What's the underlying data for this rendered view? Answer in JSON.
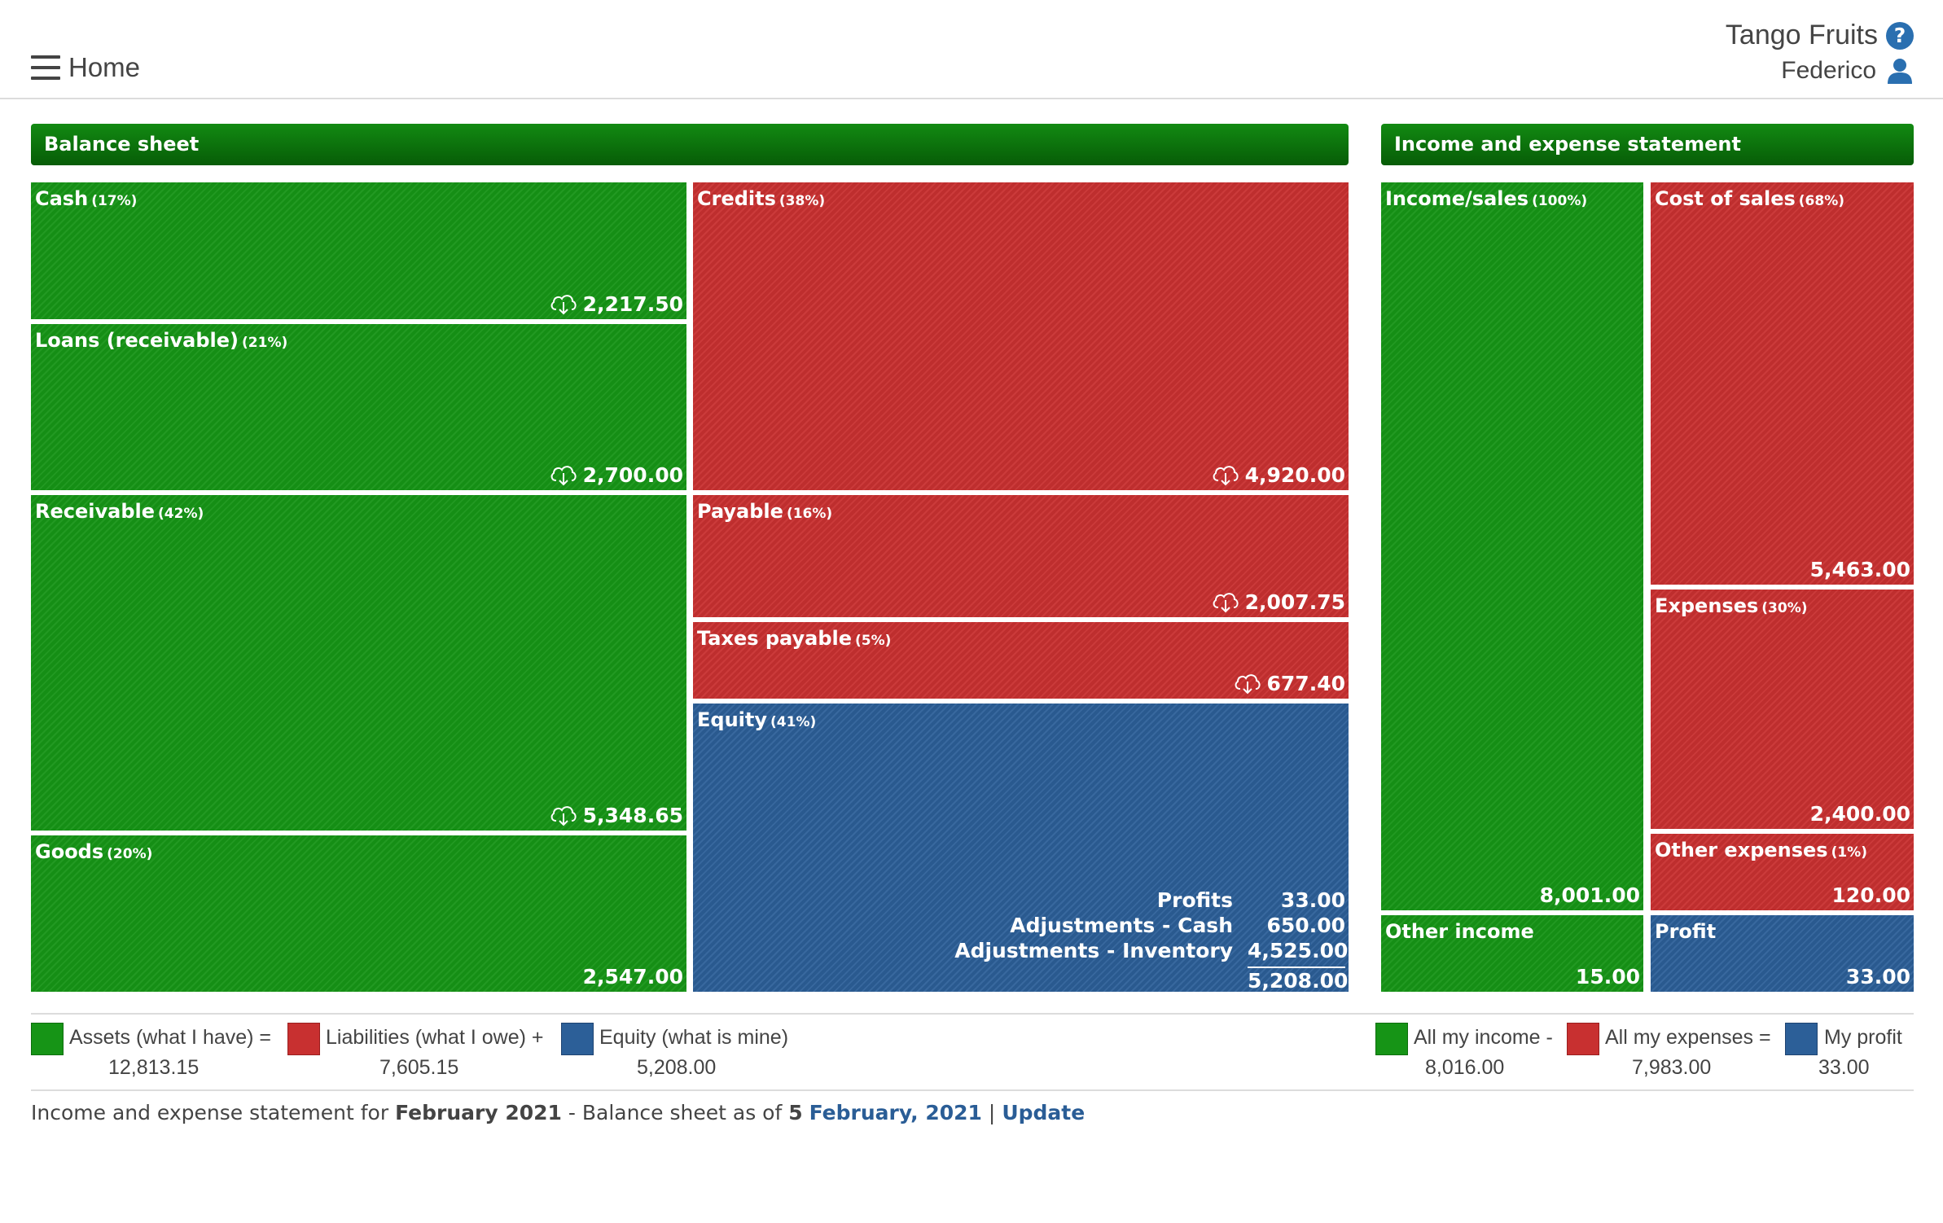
{
  "header": {
    "home_label": "Home",
    "company": "Tango Fruits",
    "user": "Federico"
  },
  "balance_sheet": {
    "title": "Balance sheet",
    "cash": {
      "name": "Cash",
      "pct": "(17%)",
      "value": "2,217.50"
    },
    "loans": {
      "name": "Loans (receivable)",
      "pct": "(21%)",
      "value": "2,700.00"
    },
    "receivable": {
      "name": "Receivable",
      "pct": "(42%)",
      "value": "5,348.65"
    },
    "goods": {
      "name": "Goods",
      "pct": "(20%)",
      "value": "2,547.00"
    },
    "credits": {
      "name": "Credits",
      "pct": "(38%)",
      "value": "4,920.00"
    },
    "payable": {
      "name": "Payable",
      "pct": "(16%)",
      "value": "2,007.75"
    },
    "taxes": {
      "name": "Taxes payable",
      "pct": "(5%)",
      "value": "677.40"
    },
    "equity": {
      "name": "Equity",
      "pct": "(41%)",
      "rows": [
        {
          "label": "Profits",
          "value": "33.00"
        },
        {
          "label": "Adjustments - Cash",
          "value": "650.00"
        },
        {
          "label": "Adjustments - Inventory",
          "value": "4,525.00"
        }
      ],
      "total": "5,208.00"
    }
  },
  "income_statement": {
    "title": "Income and expense statement",
    "income_sales": {
      "name": "Income/sales",
      "pct": "(100%)",
      "value": "8,001.00"
    },
    "other_income": {
      "name": "Other income",
      "value": "15.00"
    },
    "cost_of_sales": {
      "name": "Cost of sales",
      "pct": "(68%)",
      "value": "5,463.00"
    },
    "expenses": {
      "name": "Expenses",
      "pct": "(30%)",
      "value": "2,400.00"
    },
    "other_expenses": {
      "name": "Other expenses",
      "pct": "(1%)",
      "value": "120.00"
    },
    "profit": {
      "name": "Profit",
      "value": "33.00"
    }
  },
  "legend_balance": {
    "assets_label": "Assets (what I have) =",
    "assets_value": "12,813.15",
    "liabilities_label": "Liabilities (what I owe) +",
    "liabilities_value": "7,605.15",
    "equity_label": "Equity (what is mine)",
    "equity_value": "5,208.00"
  },
  "legend_income": {
    "income_label": "All my income -",
    "income_value": "8,016.00",
    "expenses_label": "All my expenses =",
    "expenses_value": "7,983.00",
    "profit_label": "My profit",
    "profit_value": "33.00"
  },
  "footer": {
    "prefix": "Income and expense statement for",
    "period": "February 2021",
    "middle": "- Balance sheet as of",
    "day": "5",
    "date_link": "February, 2021",
    "separator": "|",
    "update": "Update"
  },
  "colors": {
    "assets": "#169416",
    "liabilities": "#c83030",
    "equity": "#2c5f98",
    "header": "#0b6f0b"
  }
}
